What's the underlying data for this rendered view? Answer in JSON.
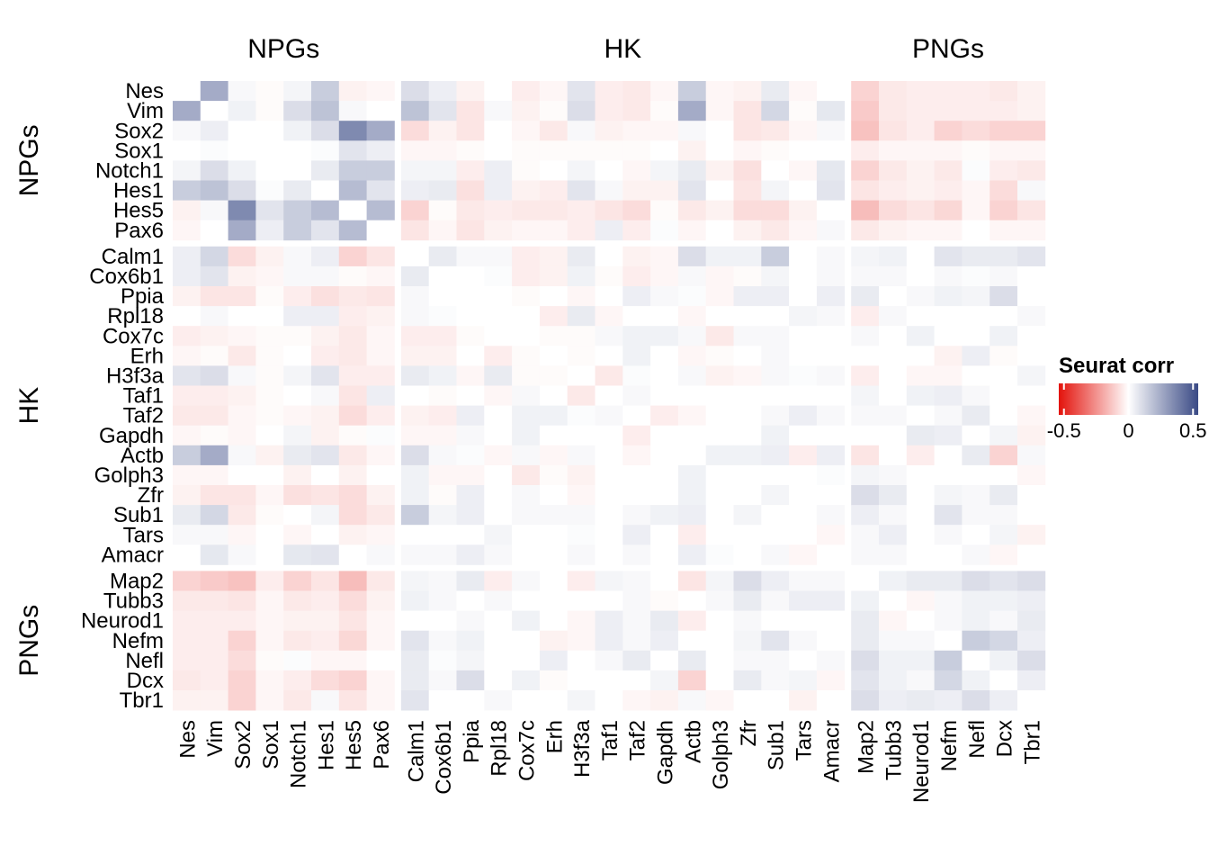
{
  "chart_data": {
    "type": "heatmap",
    "groups": [
      {
        "name": "NPGs",
        "genes": [
          "Nes",
          "Vim",
          "Sox2",
          "Sox1",
          "Notch1",
          "Hes1",
          "Hes5",
          "Pax6"
        ]
      },
      {
        "name": "HK",
        "genes": [
          "Calm1",
          "Cox6b1",
          "Ppia",
          "Rpl18",
          "Cox7c",
          "Erh",
          "H3f3a",
          "Taf1",
          "Taf2",
          "Gapdh",
          "Actb",
          "Golph3",
          "Zfr",
          "Sub1",
          "Tars",
          "Amacr"
        ]
      },
      {
        "name": "PNGs",
        "genes": [
          "Map2",
          "Tubb3",
          "Neurod1",
          "Nefm",
          "Nefl",
          "Dcx",
          "Tbr1"
        ]
      }
    ],
    "values": [
      [
        0,
        0.25,
        0.02,
        -0.01,
        0.03,
        0.15,
        -0.03,
        -0.02,
        0.1,
        0.05,
        -0.03,
        0,
        -0.04,
        -0.02,
        0.08,
        -0.04,
        -0.05,
        -0.02,
        0.15,
        -0.02,
        -0.03,
        0.06,
        -0.02,
        0,
        -0.1,
        -0.05,
        -0.04,
        -0.04,
        -0.04,
        -0.05,
        -0.03
      ],
      [
        0.25,
        0,
        0.04,
        -0.01,
        0.1,
        0.18,
        0.02,
        0,
        0.18,
        0.08,
        -0.06,
        0.02,
        -0.03,
        -0.01,
        0.1,
        -0.04,
        -0.05,
        -0.01,
        0.25,
        -0.02,
        -0.06,
        0.12,
        -0.01,
        0.07,
        -0.12,
        -0.05,
        -0.04,
        -0.04,
        -0.04,
        -0.04,
        -0.03
      ],
      [
        0.02,
        0.05,
        0,
        0,
        0.04,
        0.1,
        0.35,
        0.25,
        -0.08,
        -0.03,
        -0.06,
        0,
        -0.02,
        -0.05,
        0.02,
        -0.03,
        -0.02,
        -0.02,
        0.02,
        0,
        -0.06,
        -0.05,
        -0.02,
        0.02,
        -0.14,
        -0.06,
        -0.04,
        -0.1,
        -0.08,
        -0.1,
        -0.1
      ],
      [
        0,
        0.01,
        0,
        0,
        0,
        0.01,
        0.08,
        0.05,
        -0.02,
        -0.02,
        -0.01,
        0,
        -0.01,
        -0.01,
        -0.01,
        -0.01,
        -0.01,
        0,
        -0.03,
        0,
        -0.02,
        -0.01,
        0,
        0,
        -0.04,
        -0.02,
        -0.02,
        -0.02,
        -0.01,
        -0.02,
        -0.02
      ],
      [
        0.03,
        0.1,
        0.04,
        0,
        0,
        0.06,
        0.15,
        0.15,
        0.03,
        0.03,
        -0.04,
        0.05,
        -0.01,
        0,
        0.03,
        0,
        -0.02,
        0.03,
        0.06,
        -0.03,
        -0.07,
        0,
        -0.02,
        0.07,
        -0.1,
        -0.05,
        -0.03,
        -0.05,
        0.01,
        -0.04,
        -0.05
      ],
      [
        0.15,
        0.18,
        0.1,
        0.01,
        0.06,
        0,
        0.2,
        0.08,
        0.05,
        0.06,
        -0.07,
        0.05,
        -0.03,
        -0.04,
        0.08,
        0.02,
        -0.03,
        -0.03,
        0.08,
        0,
        -0.06,
        0.03,
        0,
        0.08,
        -0.06,
        -0.04,
        -0.03,
        -0.04,
        -0.02,
        -0.08,
        0.02
      ],
      [
        -0.03,
        0.02,
        0.35,
        0.08,
        0.15,
        0.2,
        0,
        0.2,
        -0.1,
        -0.01,
        -0.05,
        -0.04,
        -0.05,
        -0.05,
        -0.04,
        -0.06,
        -0.08,
        -0.01,
        -0.05,
        -0.03,
        -0.08,
        -0.08,
        -0.03,
        0,
        -0.15,
        -0.08,
        -0.06,
        -0.09,
        -0.02,
        -0.1,
        -0.06
      ],
      [
        -0.02,
        0,
        0.25,
        0.05,
        0.15,
        0.08,
        0.2,
        0,
        -0.06,
        -0.02,
        -0.06,
        -0.03,
        -0.02,
        -0.02,
        -0.04,
        0.05,
        -0.04,
        0.01,
        -0.02,
        0,
        -0.03,
        -0.05,
        -0.02,
        0.02,
        -0.05,
        -0.03,
        -0.02,
        -0.02,
        0,
        -0.02,
        -0.02
      ],
      [
        0.05,
        0.12,
        -0.08,
        -0.03,
        0.02,
        0.05,
        -0.1,
        -0.06,
        0,
        0.06,
        0.02,
        0.02,
        -0.04,
        -0.03,
        0.06,
        0,
        -0.03,
        -0.02,
        0.1,
        0.04,
        0.04,
        0.15,
        0,
        0.02,
        0.03,
        0.04,
        0,
        0.08,
        0.06,
        0.06,
        0.08
      ],
      [
        0.05,
        0.08,
        -0.03,
        -0.02,
        0.02,
        0.02,
        -0.01,
        -0.02,
        0.06,
        0,
        0,
        0.01,
        -0.04,
        -0.03,
        0.04,
        -0.01,
        -0.04,
        -0.02,
        0.02,
        -0.02,
        -0.01,
        0.03,
        0,
        0.02,
        0.02,
        0.02,
        0,
        0.02,
        0.01,
        0.02,
        0
      ],
      [
        -0.03,
        -0.06,
        -0.06,
        -0.01,
        -0.04,
        -0.07,
        -0.05,
        -0.06,
        0.02,
        0,
        0,
        0,
        -0.01,
        0,
        -0.02,
        0,
        0.05,
        0.02,
        0.01,
        -0.02,
        0.05,
        0.05,
        0,
        0.05,
        0.06,
        0,
        0.02,
        0.04,
        0.03,
        0.1,
        0
      ],
      [
        0,
        0.02,
        0,
        0,
        0.05,
        0.05,
        -0.04,
        -0.03,
        0.02,
        0.01,
        0,
        0,
        0,
        -0.04,
        0.06,
        -0.02,
        0,
        0,
        -0.02,
        0,
        0,
        0,
        0.03,
        0.02,
        -0.04,
        0.02,
        0,
        0,
        0,
        0,
        0.02
      ],
      [
        -0.04,
        -0.03,
        -0.02,
        -0.01,
        -0.01,
        -0.03,
        -0.05,
        -0.02,
        -0.04,
        -0.04,
        -0.01,
        0,
        0,
        -0.01,
        -0.01,
        0.02,
        0.04,
        0.04,
        0.02,
        -0.05,
        0.02,
        0.02,
        0,
        0,
        0.02,
        0,
        0.04,
        0,
        0,
        0.04,
        0
      ],
      [
        -0.02,
        -0.01,
        -0.05,
        -0.01,
        0,
        -0.04,
        -0.05,
        -0.02,
        -0.03,
        -0.03,
        0,
        -0.04,
        -0.01,
        0,
        -0.01,
        0,
        0.04,
        0,
        -0.02,
        -0.01,
        0,
        0.02,
        0,
        0,
        0,
        0,
        0,
        -0.03,
        0.05,
        -0.01,
        0
      ],
      [
        0.08,
        0.1,
        0.02,
        -0.01,
        0.03,
        0.08,
        -0.04,
        -0.04,
        0.06,
        0.04,
        -0.02,
        0.06,
        -0.01,
        -0.01,
        0,
        -0.05,
        0.01,
        0,
        0.02,
        -0.03,
        -0.02,
        0.02,
        0.01,
        0.02,
        -0.04,
        0,
        -0.02,
        -0.02,
        0,
        0,
        0.03
      ],
      [
        -0.04,
        -0.04,
        -0.03,
        -0.01,
        0,
        0.02,
        -0.06,
        0.05,
        0,
        -0.01,
        0,
        -0.02,
        0.02,
        0,
        -0.05,
        0,
        0.02,
        0,
        0,
        0,
        0,
        0,
        0,
        0,
        0.03,
        0,
        0.04,
        0.05,
        0.02,
        0,
        0
      ],
      [
        -0.05,
        -0.05,
        -0.02,
        -0.01,
        -0.02,
        -0.03,
        -0.08,
        -0.04,
        -0.03,
        -0.04,
        0.05,
        0,
        0.04,
        0.04,
        0.01,
        0.02,
        0,
        -0.04,
        -0.02,
        0,
        0,
        0.02,
        0.05,
        0.02,
        0.02,
        0.02,
        0,
        0.02,
        0.06,
        0,
        -0.02
      ],
      [
        -0.02,
        -0.01,
        -0.02,
        0,
        0.03,
        -0.03,
        -0.01,
        0.01,
        -0.02,
        -0.02,
        0.02,
        0,
        0.04,
        0,
        0,
        0,
        -0.04,
        0,
        0,
        0,
        0,
        0.04,
        0,
        0,
        0,
        0,
        0.06,
        0.05,
        0,
        0.03,
        -0.03
      ],
      [
        0.15,
        0.25,
        0.02,
        -0.03,
        0.06,
        0.08,
        -0.05,
        -0.02,
        0.1,
        0.02,
        0.01,
        -0.02,
        0.02,
        -0.02,
        0.02,
        0,
        -0.02,
        0,
        0,
        0.04,
        0.04,
        0.05,
        -0.04,
        0.05,
        -0.06,
        0,
        -0.04,
        0,
        0.06,
        -0.1,
        0.02
      ],
      [
        -0.02,
        -0.02,
        0,
        0,
        -0.03,
        0,
        -0.03,
        0,
        0.04,
        -0.02,
        -0.02,
        0,
        -0.05,
        -0.01,
        -0.03,
        0,
        0,
        0,
        0.04,
        0,
        0,
        0,
        0,
        0.01,
        0.03,
        0.02,
        0,
        0,
        0,
        0,
        -0.02
      ],
      [
        -0.03,
        -0.06,
        -0.06,
        -0.02,
        -0.07,
        -0.06,
        -0.08,
        -0.03,
        0.04,
        -0.01,
        0.05,
        0,
        0.02,
        0,
        -0.02,
        0,
        0,
        0,
        0.04,
        0,
        0,
        0.03,
        0,
        0,
        0.1,
        0.06,
        0,
        0.03,
        0.02,
        0.06,
        0
      ],
      [
        0.06,
        0.12,
        -0.05,
        -0.01,
        0,
        0.03,
        -0.08,
        -0.05,
        0.15,
        0.03,
        0.05,
        0,
        0.02,
        0.02,
        0.02,
        0,
        0.02,
        0.04,
        0.05,
        0,
        0.03,
        0,
        0,
        0.02,
        0.05,
        0.02,
        0,
        0.08,
        0.02,
        0.02,
        0
      ],
      [
        0.02,
        0.02,
        -0.02,
        0,
        -0.02,
        0,
        -0.03,
        -0.02,
        0,
        0,
        0,
        0.03,
        0,
        0,
        0.01,
        0,
        0.05,
        0,
        -0.04,
        0,
        0,
        0,
        0,
        -0.02,
        0.02,
        0.05,
        0,
        0.02,
        0,
        0.03,
        -0.03
      ],
      [
        0,
        0.07,
        0.02,
        0,
        0.07,
        0.08,
        0,
        0.02,
        0.02,
        0.02,
        0.05,
        0.02,
        0,
        0,
        0.02,
        0,
        0.02,
        0,
        0.05,
        0.01,
        0,
        0.02,
        -0.02,
        0,
        0.02,
        0.02,
        0,
        0,
        0.02,
        -0.02,
        0
      ],
      [
        -0.1,
        -0.12,
        -0.14,
        -0.04,
        -0.1,
        -0.06,
        -0.15,
        -0.05,
        0.03,
        0.02,
        0.06,
        -0.04,
        0.02,
        0,
        -0.04,
        0.03,
        0.02,
        0,
        -0.06,
        0.03,
        0.1,
        0.05,
        0.02,
        0.02,
        0,
        0.04,
        0.06,
        0.06,
        0.1,
        0.08,
        0.1
      ],
      [
        -0.05,
        -0.05,
        -0.06,
        -0.02,
        -0.05,
        -0.04,
        -0.08,
        -0.03,
        0.04,
        0.02,
        0,
        0.02,
        0,
        0,
        0,
        0,
        0.02,
        -0.01,
        0,
        0.02,
        0.06,
        0.02,
        0.05,
        0.05,
        0.04,
        0,
        -0.02,
        0.02,
        0.04,
        0.04,
        0.05
      ],
      [
        -0.04,
        -0.04,
        -0.04,
        -0.02,
        -0.03,
        -0.03,
        -0.06,
        -0.02,
        0,
        0,
        0.02,
        0,
        0.04,
        0,
        -0.02,
        0.05,
        0.02,
        0.06,
        -0.04,
        0,
        0.02,
        0,
        0,
        0,
        0.06,
        -0.02,
        0,
        0.02,
        0.04,
        0.02,
        0.06
      ],
      [
        -0.04,
        -0.04,
        -0.1,
        -0.02,
        -0.05,
        -0.04,
        -0.09,
        -0.02,
        0.08,
        0.02,
        0.04,
        0,
        0,
        -0.03,
        -0.02,
        0.05,
        0.02,
        0.05,
        0,
        0,
        0.03,
        0.08,
        0.02,
        0,
        0.06,
        0.02,
        0.02,
        0,
        0.15,
        0.12,
        0.05
      ],
      [
        -0.04,
        -0.04,
        -0.08,
        -0.01,
        0.01,
        -0.02,
        -0.02,
        0,
        0.06,
        0.01,
        0.03,
        0,
        0,
        0.05,
        0,
        0.02,
        0.06,
        0,
        0.06,
        0,
        0.02,
        0.02,
        0,
        0.02,
        0.1,
        0.04,
        0.04,
        0.15,
        0,
        0.04,
        0.1
      ],
      [
        -0.05,
        -0.04,
        -0.1,
        -0.02,
        -0.04,
        -0.08,
        -0.1,
        -0.02,
        0.06,
        0.02,
        0.1,
        0,
        0.04,
        -0.01,
        0,
        0,
        0,
        0.03,
        -0.1,
        0,
        0.06,
        0.02,
        0.03,
        -0.02,
        0.08,
        0.04,
        0.02,
        0.12,
        0.04,
        0,
        0.05
      ],
      [
        -0.03,
        -0.03,
        -0.1,
        -0.02,
        -0.05,
        0.02,
        -0.06,
        -0.02,
        0.08,
        0,
        0,
        0.02,
        0,
        0,
        0.03,
        0,
        -0.02,
        -0.03,
        0.02,
        -0.02,
        0,
        0,
        -0.03,
        0,
        0.1,
        0.05,
        0.06,
        0.05,
        0.1,
        0.05,
        0
      ]
    ],
    "legend_title": "Seurat corr",
    "clim": [
      -0.54,
      0.54
    ],
    "cticks": [
      -0.5,
      0,
      0.5
    ],
    "colors": {
      "low": "#e3120b",
      "mid": "#ffffff",
      "high": "#3a4a85"
    }
  }
}
